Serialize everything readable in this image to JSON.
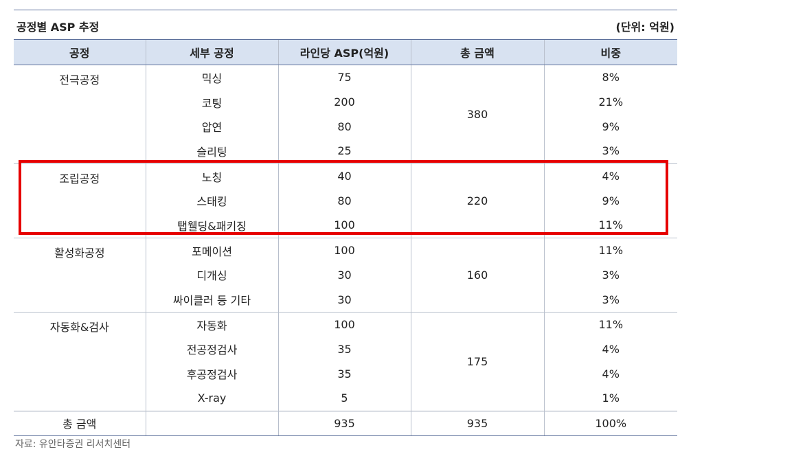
{
  "title": "공정별 ASP 추정",
  "unit": "(단위: 억원)",
  "headers": [
    "공정",
    "세부 공정",
    "라인당 ASP(억원)",
    "총 금액",
    "비중"
  ],
  "groups": [
    {
      "process": "전극공정",
      "total": "380",
      "rows": [
        {
          "sub": "믹싱",
          "asp": "75",
          "share": "8%"
        },
        {
          "sub": "코팅",
          "asp": "200",
          "share": "21%"
        },
        {
          "sub": "압연",
          "asp": "80",
          "share": "9%"
        },
        {
          "sub": "슬리팅",
          "asp": "25",
          "share": "3%"
        }
      ]
    },
    {
      "process": "조립공정",
      "total": "220",
      "rows": [
        {
          "sub": "노칭",
          "asp": "40",
          "share": "4%"
        },
        {
          "sub": "스태킹",
          "asp": "80",
          "share": "9%"
        },
        {
          "sub": "탭웰딩&패키징",
          "asp": "100",
          "share": "11%"
        }
      ]
    },
    {
      "process": "활성화공정",
      "total": "160",
      "rows": [
        {
          "sub": "포메이션",
          "asp": "100",
          "share": "11%"
        },
        {
          "sub": "디개싱",
          "asp": "30",
          "share": "3%"
        },
        {
          "sub": "싸이클러 등 기타",
          "asp": "30",
          "share": "3%"
        }
      ]
    },
    {
      "process": "자동화&검사",
      "total": "175",
      "rows": [
        {
          "sub": "자동화",
          "asp": "100",
          "share": "11%"
        },
        {
          "sub": "전공정검사",
          "asp": "35",
          "share": "4%"
        },
        {
          "sub": "후공정검사",
          "asp": "35",
          "share": "4%"
        },
        {
          "sub": "X-ray",
          "asp": "5",
          "share": "1%"
        }
      ]
    }
  ],
  "total_row": {
    "label": "총 금액",
    "sub": "",
    "asp": "935",
    "total": "935",
    "share": "100%"
  },
  "source": "자료: 유안타증권 리서치센터",
  "highlight_color": "#e60000",
  "header_bg": "#d8e2f1"
}
